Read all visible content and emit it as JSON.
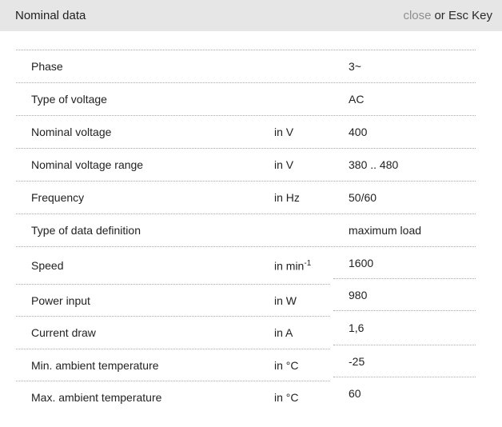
{
  "header": {
    "title": "Nominal data",
    "close_label": "close",
    "close_suffix": "or Esc Key"
  },
  "table": {
    "rows": [
      {
        "label": "Phase",
        "unit": "",
        "value": "3~"
      },
      {
        "label": "Type of voltage",
        "unit": "",
        "value": "AC"
      },
      {
        "label": "Nominal voltage",
        "unit": "in V",
        "value": "400"
      },
      {
        "label": "Nominal voltage range",
        "unit": "in V",
        "value": "380 .. 480"
      },
      {
        "label": "Frequency",
        "unit": "in Hz",
        "value": "50/60"
      },
      {
        "label": "Type of data definition",
        "unit": "",
        "value": "maximum load"
      },
      {
        "label": "Speed",
        "unit": "in min",
        "unit_sup": "-1",
        "value": "1600"
      },
      {
        "label": "Power input",
        "unit": "in W",
        "value": "980"
      },
      {
        "label": "Current draw",
        "unit": "in A",
        "value": "1,6"
      },
      {
        "label": "Min. ambient temperature",
        "unit": "in °C",
        "value": "-25"
      },
      {
        "label": "Max. ambient temperature",
        "unit": "in °C",
        "value": "60"
      }
    ]
  },
  "colors": {
    "header_bg": "#e6e6e6",
    "text": "#222222",
    "muted": "#8f8f8f",
    "divider": "#a9a9a9"
  }
}
